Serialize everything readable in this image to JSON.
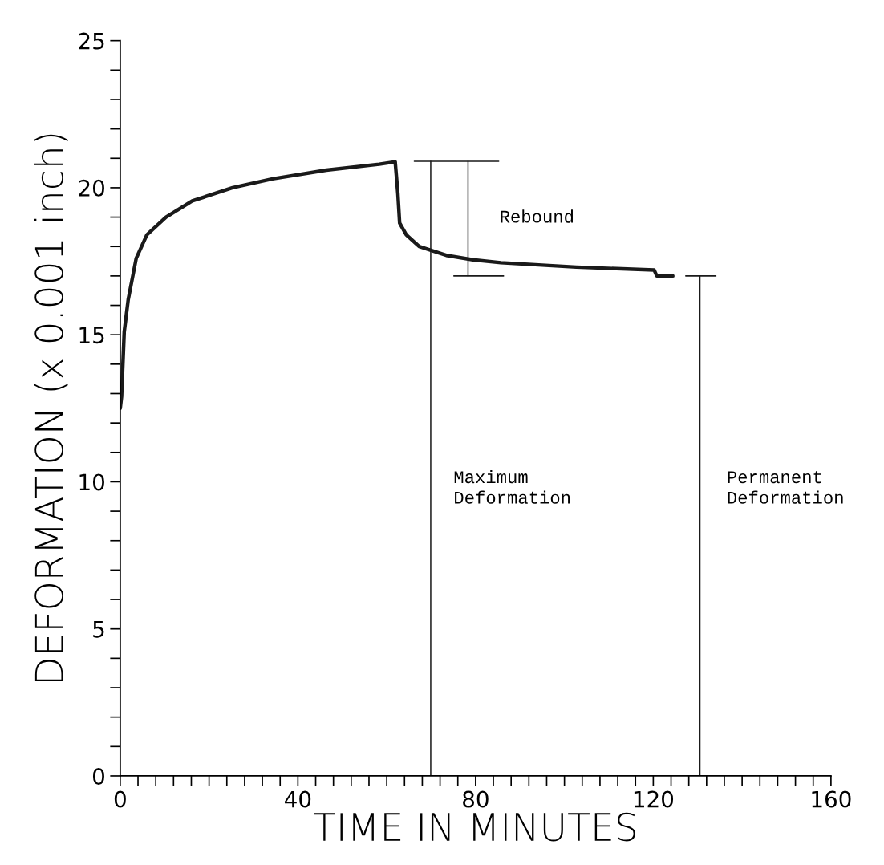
{
  "chart_data": {
    "type": "line",
    "xlabel": "TIME IN MINUTES",
    "ylabel": "DEFORMATION (x 0.001 inch)",
    "xlim": [
      0,
      160
    ],
    "ylim": [
      0,
      25
    ],
    "xticks": [
      0,
      {
        "value": 4,
        "label": null
      },
      {
        "value": 8,
        "label": null
      },
      {
        "value": 12,
        "label": null
      },
      {
        "value": 16,
        "label": null
      },
      {
        "value": 20,
        "label": null
      },
      {
        "value": 24,
        "label": null
      },
      {
        "value": 28,
        "label": null
      },
      {
        "value": 32,
        "label": null
      },
      {
        "value": 36,
        "label": null
      },
      40,
      {
        "value": 44,
        "label": null
      },
      {
        "value": 48,
        "label": null
      },
      {
        "value": 52,
        "label": null
      },
      {
        "value": 56,
        "label": null
      },
      {
        "value": 60,
        "label": null
      },
      {
        "value": 64,
        "label": null
      },
      {
        "value": 68,
        "label": null
      },
      {
        "value": 72,
        "label": null
      },
      {
        "value": 76,
        "label": null
      },
      80,
      {
        "value": 84,
        "label": null
      },
      {
        "value": 88,
        "label": null
      },
      {
        "value": 92,
        "label": null
      },
      {
        "value": 96,
        "label": null
      },
      {
        "value": 100,
        "label": null
      },
      {
        "value": 104,
        "label": null
      },
      {
        "value": 108,
        "label": null
      },
      {
        "value": 112,
        "label": null
      },
      {
        "value": 116,
        "label": null
      },
      120,
      {
        "value": 124,
        "label": null
      },
      {
        "value": 128,
        "label": null
      },
      {
        "value": 132,
        "label": null
      },
      {
        "value": 136,
        "label": null
      },
      {
        "value": 140,
        "label": null
      },
      {
        "value": 144,
        "label": null
      },
      {
        "value": 148,
        "label": null
      },
      {
        "value": 152,
        "label": null
      },
      {
        "value": 156,
        "label": null
      },
      160
    ],
    "yticks": [
      0,
      {
        "value": 1,
        "label": null
      },
      {
        "value": 2,
        "label": null
      },
      {
        "value": 3,
        "label": null
      },
      {
        "value": 4,
        "label": null
      },
      5,
      {
        "value": 6,
        "label": null
      },
      {
        "value": 7,
        "label": null
      },
      {
        "value": 8,
        "label": null
      },
      {
        "value": 9,
        "label": null
      },
      10,
      {
        "value": 11,
        "label": null
      },
      {
        "value": 12,
        "label": null
      },
      {
        "value": 13,
        "label": null
      },
      {
        "value": 14,
        "label": null
      },
      15,
      {
        "value": 16,
        "label": null
      },
      {
        "value": 17,
        "label": null
      },
      {
        "value": 18,
        "label": null
      },
      {
        "value": 19,
        "label": null
      },
      20,
      {
        "value": 21,
        "label": null
      },
      {
        "value": 22,
        "label": null
      },
      {
        "value": 23,
        "label": null
      },
      {
        "value": 24,
        "label": null
      },
      25
    ],
    "grid": false,
    "marker": "none",
    "line_style": "solid",
    "series": [
      {
        "color": "#1a1a1a",
        "x": [
          0,
          0.3,
          0.9,
          1.8,
          3.6,
          6.0,
          10.3,
          16.2,
          25.3,
          34.3,
          46.4,
          58.3,
          61.9,
          62.5,
          62.9,
          64.4,
          67.3,
          73.4,
          79.4,
          85.7,
          102.7,
          120.2,
          120.8,
          124.4
        ],
        "values": [
          12.5,
          12.9,
          15.1,
          16.2,
          17.6,
          18.4,
          19.0,
          19.55,
          20.0,
          20.3,
          20.6,
          20.8,
          20.88,
          19.8,
          18.8,
          18.4,
          18.0,
          17.7,
          17.55,
          17.45,
          17.3,
          17.2,
          17.0,
          17.0
        ]
      },
      {
        "color": "#1a1a1a",
        "x": [
          69.9,
          69.9
        ],
        "values": [
          0,
          20.9
        ]
      },
      {
        "color": "#1a1a1a",
        "x": [
          78.3,
          78.3
        ],
        "values": [
          17.0,
          20.9
        ]
      },
      {
        "color": "#1a1a1a",
        "x": [
          66.2,
          85.2
        ],
        "values": [
          20.9,
          20.9
        ]
      },
      {
        "color": "#1a1a1a",
        "x": [
          75.1,
          86.3
        ],
        "values": [
          17.0,
          17.0
        ]
      },
      {
        "color": "#1a1a1a",
        "x": [
          130.5,
          130.5
        ],
        "values": [
          0,
          17.0
        ]
      },
      {
        "color": "#1a1a1a",
        "x": [
          127.3,
          134.1
        ],
        "values": [
          17.0,
          17.0
        ]
      }
    ],
    "annotations": [
      "Rebound",
      "Maximum\nDeformation",
      "Permanent\nDeformation"
    ]
  }
}
